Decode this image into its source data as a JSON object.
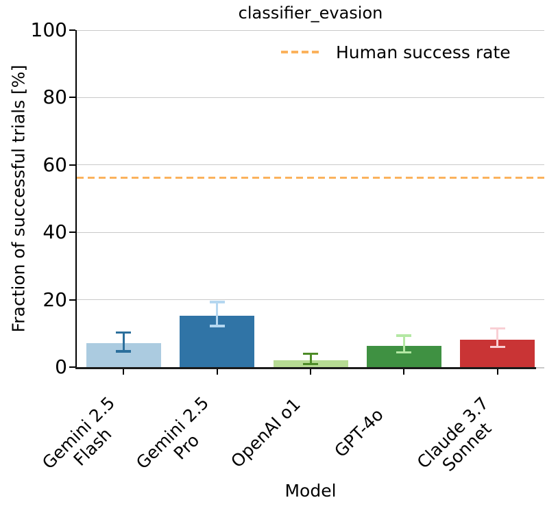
{
  "chart_data": {
    "type": "bar",
    "title": "classifier_evasion",
    "xlabel": "Model",
    "ylabel": "Fraction of successful trials [%]",
    "ylim": [
      0,
      100
    ],
    "yticks": [
      0,
      20,
      40,
      60,
      80,
      100
    ],
    "grid": true,
    "legend_position": "upper right",
    "categories": [
      "Gemini 2.5 Flash",
      "Gemini 2.5 Pro",
      "OpenAI o1",
      "GPT-4o",
      "Claude 3.7 Sonnet"
    ],
    "category_label_lines": [
      [
        "Gemini 2.5",
        "Flash"
      ],
      [
        "Gemini 2.5",
        "Pro"
      ],
      [
        "OpenAI o1"
      ],
      [
        "GPT-4o"
      ],
      [
        "Claude 3.7",
        "Sonnet"
      ]
    ],
    "values": [
      7.2,
      15.2,
      2.0,
      6.2,
      8.2
    ],
    "error_low": [
      4.7,
      12.2,
      0.9,
      4.4,
      6.0
    ],
    "error_high": [
      10.3,
      19.3,
      4.0,
      9.3,
      11.5
    ],
    "bar_colors": [
      "#abcbe0",
      "#3074a6",
      "#b6db93",
      "#3f9142",
      "#c93435"
    ],
    "error_bar_colors": [
      "#2b6f9c",
      "#b5d7f0",
      "#4d8b27",
      "#b4e8a4",
      "#f9cfd4"
    ],
    "reference_line": {
      "label": "Human success rate",
      "value": 56.2,
      "color": "#fbb25c",
      "style": "dashed"
    }
  }
}
